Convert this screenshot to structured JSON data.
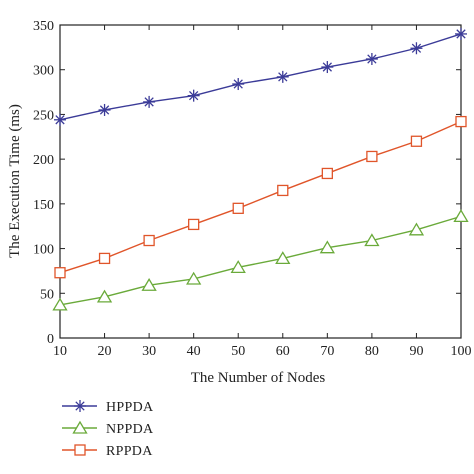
{
  "chart_data": {
    "type": "line",
    "xlabel": "The Number of Nodes",
    "ylabel": "The Execution Time (ms)",
    "x": [
      10,
      20,
      30,
      40,
      50,
      60,
      70,
      80,
      90,
      100
    ],
    "xlim": [
      10,
      100
    ],
    "ylim": [
      0,
      350
    ],
    "xticks": [
      10,
      20,
      30,
      40,
      50,
      60,
      70,
      80,
      90,
      100
    ],
    "yticks": [
      0,
      50,
      100,
      150,
      200,
      250,
      300,
      350
    ],
    "grid": false,
    "legend_position": "bottom-left, below plot",
    "series": [
      {
        "name": "HPPDA",
        "marker": "star",
        "color": "#3b3b98",
        "values": [
          244,
          255,
          264,
          271,
          284,
          292,
          303,
          312,
          324,
          340
        ]
      },
      {
        "name": "NPPDA",
        "marker": "triangle",
        "color": "#6aaa3a",
        "values": [
          37,
          46,
          59,
          66,
          79,
          89,
          101,
          109,
          121,
          136
        ]
      },
      {
        "name": "RPPDA",
        "marker": "square",
        "color": "#e0552a",
        "values": [
          73,
          89,
          109,
          127,
          145,
          165,
          184,
          203,
          220,
          242
        ]
      }
    ]
  }
}
